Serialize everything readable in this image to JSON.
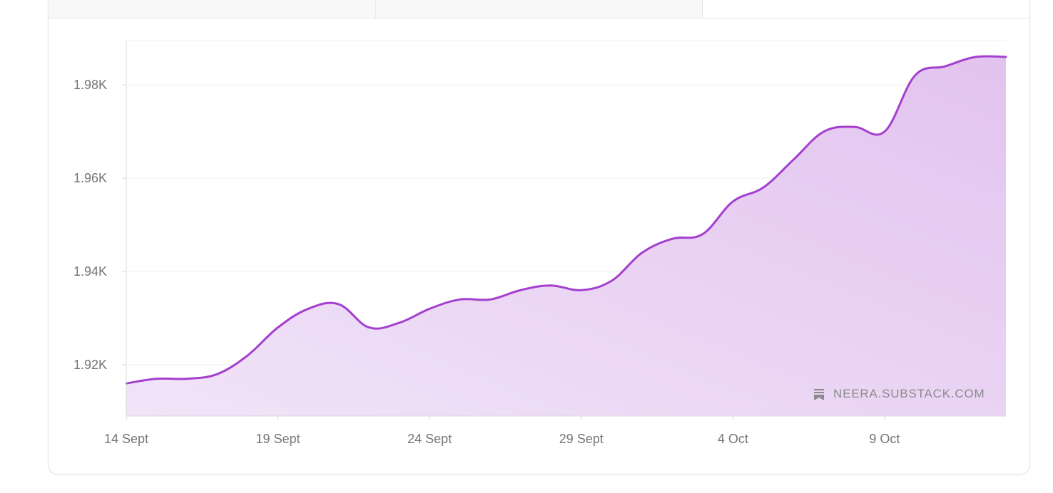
{
  "colors": {
    "line": "#a43fcf",
    "fill_top": "#e2c3ef",
    "fill_bottom": "#f1e4f8",
    "grid": "#efefef",
    "axis": "#d9d9d9"
  },
  "watermark": {
    "icon": "substack-bookmark-icon",
    "text": "NEERA.SUBSTACK.COM"
  },
  "chart_data": {
    "type": "area",
    "title": "",
    "xlabel": "",
    "ylabel": "",
    "x_ticks": [
      "14 Sept",
      "19 Sept",
      "24 Sept",
      "29 Sept",
      "4 Oct",
      "9 Oct"
    ],
    "y_ticks": [
      1920,
      1940,
      1960,
      1980
    ],
    "y_tick_labels": [
      "1.92K",
      "1.94K",
      "1.96K",
      "1.98K"
    ],
    "ylim": [
      1909,
      1989.5
    ],
    "grid": true,
    "series": [
      {
        "name": "",
        "points": [
          [
            "14 Sept",
            1916
          ],
          [
            "15 Sept",
            1917
          ],
          [
            "16 Sept",
            1917
          ],
          [
            "17 Sept",
            1918
          ],
          [
            "18 Sept",
            1922
          ],
          [
            "19 Sept",
            1928
          ],
          [
            "20 Sept",
            1932
          ],
          [
            "21 Sept",
            1933
          ],
          [
            "22 Sept",
            1928
          ],
          [
            "23 Sept",
            1929
          ],
          [
            "24 Sept",
            1932
          ],
          [
            "25 Sept",
            1934
          ],
          [
            "26 Sept",
            1934
          ],
          [
            "27 Sept",
            1936
          ],
          [
            "28 Sept",
            1937
          ],
          [
            "29 Sept",
            1936
          ],
          [
            "30 Sept",
            1938
          ],
          [
            "1 Oct",
            1944
          ],
          [
            "2 Oct",
            1947
          ],
          [
            "3 Oct",
            1948
          ],
          [
            "4 Oct",
            1955
          ],
          [
            "5 Oct",
            1958
          ],
          [
            "6 Oct",
            1964
          ],
          [
            "7 Oct",
            1970
          ],
          [
            "8 Oct",
            1971
          ],
          [
            "9 Oct",
            1970
          ],
          [
            "10 Oct",
            1982
          ],
          [
            "11 Oct",
            1984
          ],
          [
            "12 Oct",
            1986
          ],
          [
            "13 Oct",
            1986
          ]
        ]
      }
    ]
  }
}
